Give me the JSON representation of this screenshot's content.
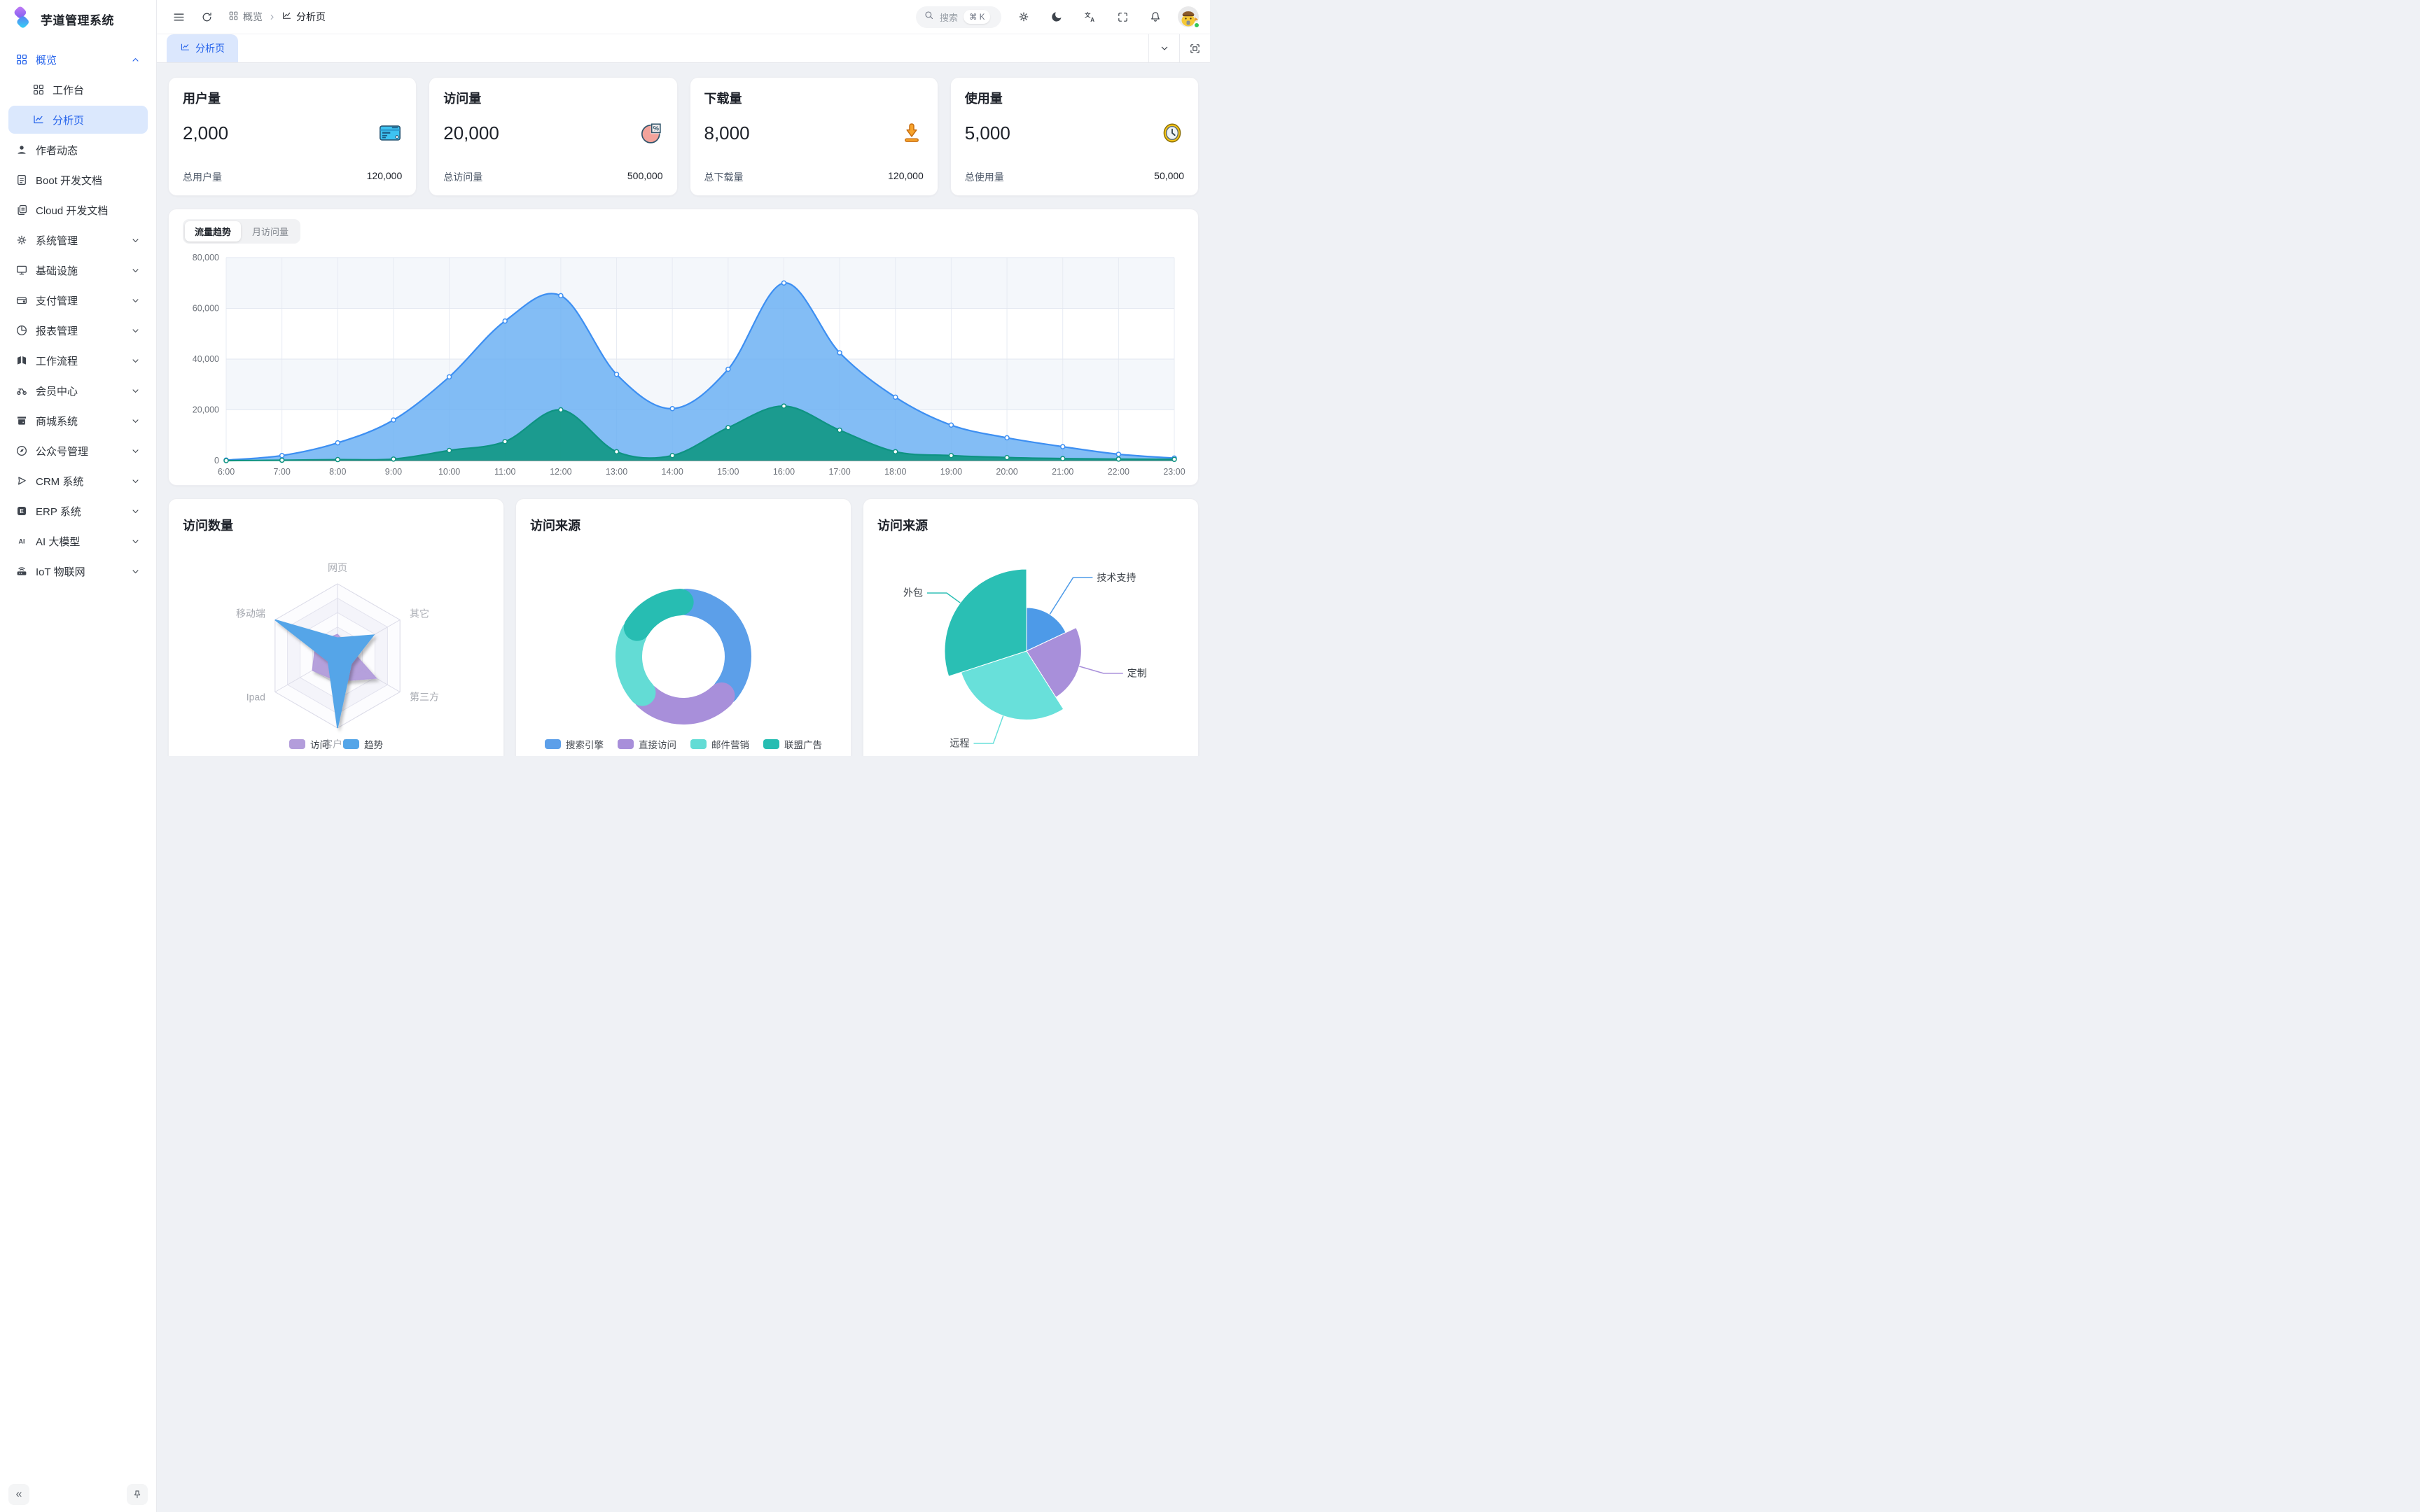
{
  "app": {
    "name": "芋道管理系统"
  },
  "sidebar": {
    "logo_title": "芋道管理系统",
    "menu": [
      {
        "icon": "grid",
        "label": "概览",
        "state": "expanded",
        "accent": true
      },
      {
        "icon": "grid",
        "label": "工作台",
        "indent": true
      },
      {
        "icon": "chart",
        "label": "分析页",
        "indent": true,
        "selected": true
      },
      {
        "icon": "user",
        "label": "作者动态"
      },
      {
        "icon": "doc",
        "label": "Boot 开发文档"
      },
      {
        "icon": "docs",
        "label": "Cloud 开发文档"
      },
      {
        "icon": "gear",
        "label": "系统管理",
        "state": "collapsed"
      },
      {
        "icon": "monitor",
        "label": "基础设施",
        "state": "collapsed"
      },
      {
        "icon": "pay",
        "label": "支付管理",
        "state": "collapsed"
      },
      {
        "icon": "pie",
        "label": "报表管理",
        "state": "collapsed"
      },
      {
        "icon": "flow",
        "label": "工作流程",
        "state": "collapsed"
      },
      {
        "icon": "member",
        "label": "会员中心",
        "state": "collapsed"
      },
      {
        "icon": "shop",
        "label": "商城系统",
        "state": "collapsed"
      },
      {
        "icon": "compass",
        "label": "公众号管理",
        "state": "collapsed"
      },
      {
        "icon": "crm",
        "label": "CRM 系统",
        "state": "collapsed"
      },
      {
        "icon": "erp",
        "label": "ERP 系统",
        "state": "collapsed"
      },
      {
        "icon": "ai",
        "label": "AI 大模型",
        "state": "collapsed"
      },
      {
        "icon": "iot",
        "label": "IoT 物联网",
        "state": "collapsed"
      }
    ],
    "collapse_label": "«"
  },
  "header": {
    "breadcrumb": [
      {
        "icon": "grid",
        "label": "概览"
      },
      {
        "icon": "chart",
        "label": "分析页"
      }
    ],
    "search": {
      "placeholder": "搜索",
      "shortcut": "⌘ K"
    }
  },
  "tabbar": {
    "tabs": [
      {
        "icon": "chart",
        "label": "分析页",
        "active": true
      }
    ]
  },
  "stats": [
    {
      "title": "用户量",
      "value": "2,000",
      "icon": "bankcard",
      "footer_label": "总用户量",
      "footer_value": "120,000"
    },
    {
      "title": "访问量",
      "value": "20,000",
      "icon": "piechart",
      "footer_label": "总访问量",
      "footer_value": "500,000"
    },
    {
      "title": "下载量",
      "value": "8,000",
      "icon": "download",
      "footer_label": "总下载量",
      "footer_value": "120,000"
    },
    {
      "title": "使用量",
      "value": "5,000",
      "icon": "clock",
      "footer_label": "总使用量",
      "footer_value": "50,000"
    }
  ],
  "trend_card": {
    "options": [
      "流量趋势",
      "月访问量"
    ],
    "active": "流量趋势"
  },
  "cards": {
    "radar_title": "访问数量",
    "donut_title": "访问来源",
    "rose_title": "访问来源"
  },
  "chart_data": [
    {
      "id": "traffic-trend",
      "type": "area",
      "title": "流量趋势",
      "x": [
        "6:00",
        "7:00",
        "8:00",
        "9:00",
        "10:00",
        "11:00",
        "12:00",
        "13:00",
        "14:00",
        "15:00",
        "16:00",
        "17:00",
        "18:00",
        "19:00",
        "20:00",
        "21:00",
        "22:00",
        "23:00"
      ],
      "ylim": [
        0,
        80000
      ],
      "yticks": [
        0,
        20000,
        40000,
        60000,
        80000
      ],
      "grid": true,
      "series": [
        {
          "name": "series-blue",
          "color": "#3D8FF2",
          "fill": "rgba(104,174,243,0.82)",
          "values": [
            200,
            2000,
            7000,
            16000,
            33000,
            55000,
            65000,
            34000,
            20500,
            36000,
            70000,
            42500,
            25000,
            14000,
            9000,
            5500,
            2500,
            1000
          ]
        },
        {
          "name": "series-green",
          "color": "#0E9382",
          "fill": "rgba(18,152,133,0.92)",
          "values": [
            0,
            150,
            400,
            600,
            4000,
            7500,
            20000,
            3500,
            2000,
            13000,
            21500,
            12000,
            3500,
            2000,
            1200,
            800,
            600,
            500
          ]
        }
      ]
    },
    {
      "id": "visit-count",
      "type": "radar",
      "title": "访问数量",
      "indicators": [
        "网页",
        "其它",
        "第三方",
        "客户端",
        "Ipad",
        "移动端"
      ],
      "max": 100,
      "series": [
        {
          "name": "访问",
          "color": "#B39DDB",
          "values": [
            30,
            20,
            62,
            35,
            40,
            35
          ]
        },
        {
          "name": "趋势",
          "color": "#54A5E8",
          "values": [
            25,
            58,
            22,
            100,
            15,
            100
          ]
        }
      ],
      "legend_position": "bottom"
    },
    {
      "id": "visit-source-donut",
      "type": "pie",
      "subtype": "donut",
      "title": "访问来源",
      "items": [
        {
          "name": "搜索引擎",
          "value": 1048,
          "color": "#5C9FE9"
        },
        {
          "name": "直接访问",
          "value": 735,
          "color": "#A88FDA"
        },
        {
          "name": "邮件营销",
          "value": 580,
          "color": "#63DCD5"
        },
        {
          "name": "联盟广告",
          "value": 484,
          "color": "#27BDB2"
        }
      ],
      "legend_position": "bottom"
    },
    {
      "id": "visit-source-rose",
      "type": "pie",
      "subtype": "rose",
      "title": "访问来源",
      "items": [
        {
          "name": "技术支持",
          "value": 18,
          "color": "#4D9AE8",
          "radius_frac": 0.53
        },
        {
          "name": "定制",
          "value": 23,
          "color": "#A88FDA",
          "radius_frac": 0.67
        },
        {
          "name": "远程",
          "value": 29,
          "color": "#68E0DA",
          "radius_frac": 0.84
        },
        {
          "name": "外包",
          "value": 30,
          "color": "#2ABFB4",
          "radius_frac": 1.0
        }
      ],
      "labels_outside": true
    }
  ]
}
